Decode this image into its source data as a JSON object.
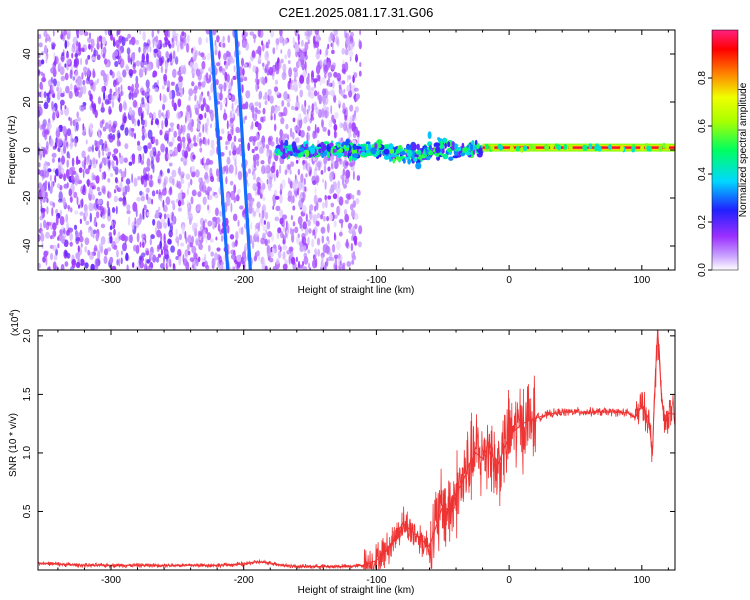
{
  "title": "C2E1.2025.081.17.31.G06",
  "chart_data": [
    {
      "type": "heatmap",
      "xlabel": "Height of straight line (km)",
      "ylabel": "Frequency (Hz)",
      "xlim": [
        -355,
        125
      ],
      "ylim": [
        -50,
        50
      ],
      "x_ticks": [
        -300,
        -200,
        -100,
        0,
        100
      ],
      "y_ticks": [
        -40,
        -20,
        0,
        20,
        40
      ],
      "colorbar": {
        "label": "Normalized spectral amplitude",
        "range": [
          0,
          1
        ],
        "ticks": [
          0.0,
          0.2,
          0.4,
          0.6,
          0.8
        ],
        "colors": [
          "#ffffff",
          "#9b30ff",
          "#2020ff",
          "#00d8ff",
          "#00ff60",
          "#f0ff00",
          "#ff8000",
          "#ff0000",
          "#ff2080"
        ]
      },
      "features": [
        {
          "name": "diffuse-noise",
          "x_range": [
            -355,
            -112
          ],
          "y_range": [
            -50,
            50
          ],
          "amplitude": 0.15
        },
        {
          "name": "slanted-streak-1",
          "x_start": -212,
          "x_end": -225,
          "y_start": -50,
          "y_end": 50,
          "amplitude": 0.3
        },
        {
          "name": "slanted-streak-2",
          "x_start": -195,
          "x_end": -206,
          "y_start": -50,
          "y_end": 50,
          "amplitude": 0.3
        },
        {
          "name": "carrier-band",
          "x_range": [
            -20,
            125
          ],
          "frequency": 1,
          "amplitude": 0.95
        },
        {
          "name": "transition-cluster",
          "x_range": [
            -175,
            -20
          ],
          "frequency": 0,
          "amplitude": 0.35
        }
      ]
    },
    {
      "type": "line",
      "xlabel": "Height of straight line (km)",
      "ylabel": "SNR (10 * v/v)",
      "y_multiplier": "(x10",
      "y_multiplier_exp": "4",
      "xlim": [
        -355,
        125
      ],
      "ylim": [
        0,
        2.05
      ],
      "x_ticks": [
        -300,
        -200,
        -100,
        0,
        100
      ],
      "y_ticks": [
        0.5,
        1.0,
        1.5,
        2.0
      ],
      "color": "#ee3333",
      "series": [
        {
          "x": [
            -355,
            -340,
            -320,
            -300,
            -280,
            -260,
            -240,
            -220,
            -200,
            -190,
            -180,
            -170,
            -160,
            -140,
            -120,
            -110,
            -100,
            -90,
            -80,
            -70,
            -60,
            -50,
            -45,
            -40,
            -35,
            -30,
            -25,
            -20,
            -15,
            -10,
            -5,
            0,
            10,
            20,
            30,
            40,
            50,
            60,
            70,
            80,
            90,
            95,
            100,
            105,
            108,
            110,
            112,
            115,
            118,
            120,
            125
          ],
          "y": [
            0.06,
            0.05,
            0.04,
            0.04,
            0.04,
            0.04,
            0.04,
            0.04,
            0.05,
            0.07,
            0.06,
            0.04,
            0.03,
            0.03,
            0.03,
            0.04,
            0.08,
            0.2,
            0.4,
            0.3,
            0.2,
            0.55,
            0.5,
            0.65,
            0.75,
            0.9,
            1.0,
            0.95,
            1.1,
            0.85,
            1.0,
            1.15,
            1.25,
            1.3,
            1.33,
            1.35,
            1.35,
            1.35,
            1.35,
            1.35,
            1.34,
            1.3,
            1.4,
            1.3,
            1.0,
            1.6,
            2.05,
            1.45,
            1.25,
            1.34,
            1.33
          ]
        }
      ]
    }
  ]
}
